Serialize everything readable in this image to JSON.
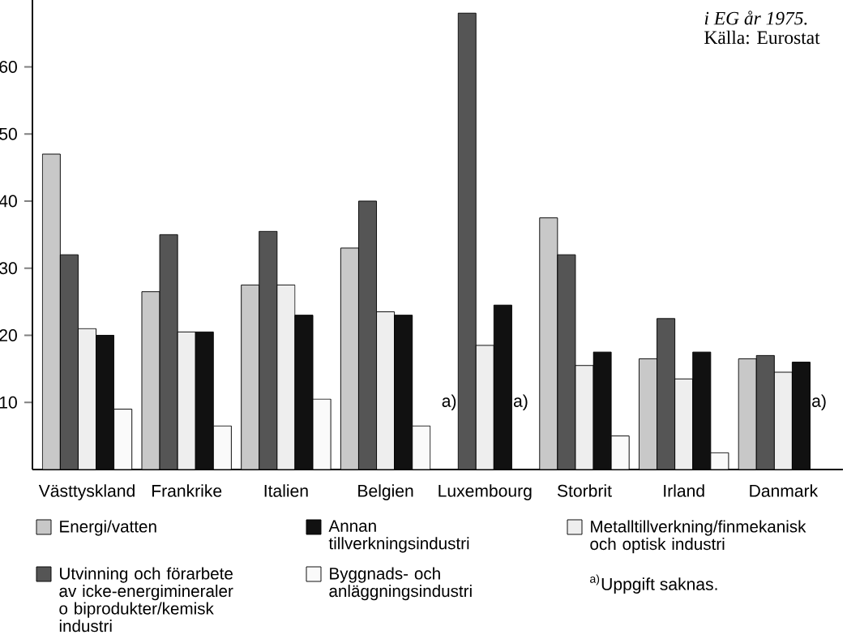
{
  "chart_data": {
    "type": "bar",
    "categories": [
      "Västtyskland",
      "Frankrike",
      "Italien",
      "Belgien",
      "Luxembourg",
      "Storbrit",
      "Irland",
      "Danmark"
    ],
    "series": [
      {
        "name": "Energi/vatten",
        "color": "#c8c8c8",
        "values": [
          47,
          26.5,
          27.5,
          33,
          null,
          37.5,
          16.5,
          16.5
        ],
        "value_labels": [
          null,
          null,
          null,
          null,
          "a)",
          null,
          null,
          null
        ]
      },
      {
        "name": "Utvinning och förarbete av icke-energimineraler o biprodukter/kemisk industri",
        "color": "#555555",
        "values": [
          32,
          35,
          35.5,
          40,
          68,
          32,
          22.5,
          17
        ],
        "value_labels": [
          null,
          null,
          null,
          null,
          null,
          null,
          null,
          null
        ]
      },
      {
        "name": "Metalltillverkning/finmekanisk och optisk industri",
        "color": "#eeeeee",
        "values": [
          21,
          20.5,
          27.5,
          23.5,
          18.5,
          15.5,
          13.5,
          14.5
        ],
        "value_labels": [
          null,
          null,
          null,
          null,
          null,
          null,
          null,
          null
        ]
      },
      {
        "name": "Annan tillverkningsindustri",
        "color": "#111111",
        "values": [
          20,
          20.5,
          23,
          23,
          24.5,
          17.5,
          17.5,
          16
        ],
        "value_labels": [
          null,
          null,
          null,
          null,
          null,
          null,
          null,
          null
        ]
      },
      {
        "name": "Byggnads- och anläggningsindustri",
        "color": "#fafafa",
        "values": [
          9,
          6.5,
          10.5,
          6.5,
          null,
          5,
          2.5,
          null
        ],
        "value_labels": [
          null,
          null,
          null,
          null,
          "a)",
          null,
          null,
          "a)"
        ]
      }
    ],
    "ylim": [
      0,
      70
    ],
    "yticks": [
      10,
      20,
      30,
      40,
      50,
      60
    ],
    "legend": "bottom",
    "annotations": [
      "*i EG år 1975.*",
      "Källa: Eurostat",
      "$^{a)}$Uppgift saknas."
    ]
  }
}
